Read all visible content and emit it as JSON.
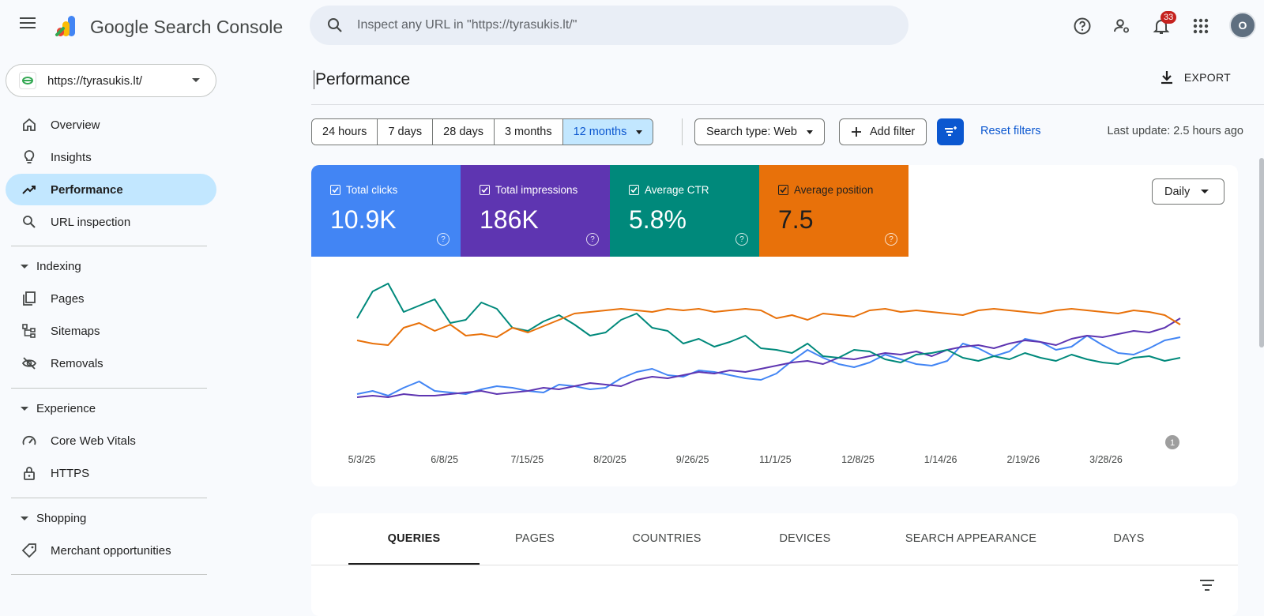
{
  "app": {
    "brand": "Google Search Console"
  },
  "search": {
    "placeholder": "Inspect any URL in \"https://tyrasukis.lt/\""
  },
  "header": {
    "notifications_count": "33",
    "avatar_initial": "O"
  },
  "property": {
    "label": "https://tyrasukis.lt/"
  },
  "nav": {
    "overview": "Overview",
    "insights": "Insights",
    "performance": "Performance",
    "url_inspection": "URL inspection",
    "indexing": "Indexing",
    "pages": "Pages",
    "sitemaps": "Sitemaps",
    "removals": "Removals",
    "experience": "Experience",
    "core_web_vitals": "Core Web Vitals",
    "https": "HTTPS",
    "shopping": "Shopping",
    "merchant": "Merchant opportunities"
  },
  "page": {
    "title": "Performance",
    "export": "EXPORT"
  },
  "filters": {
    "ranges": [
      "24 hours",
      "7 days",
      "28 days",
      "3 months",
      "12 months"
    ],
    "selected_range": "12 months",
    "search_type": "Search type: Web",
    "add_filter": "Add filter",
    "reset": "Reset filters",
    "last_update": "Last update: 2.5 hours ago"
  },
  "metrics": [
    {
      "label": "Total clicks",
      "value": "10.9K",
      "color": "#4285f4",
      "checked": true
    },
    {
      "label": "Total impressions",
      "value": "186K",
      "color": "#5e35b1",
      "checked": true
    },
    {
      "label": "Average CTR",
      "value": "5.8%",
      "color": "#00897b",
      "checked": true
    },
    {
      "label": "Average position",
      "value": "7.5",
      "color": "#e8710a",
      "checked": true
    }
  ],
  "granularity": "Daily",
  "chart_data": {
    "type": "line",
    "x_tick_labels": [
      "5/3/25",
      "6/8/25",
      "7/15/25",
      "8/20/25",
      "9/26/25",
      "11/1/25",
      "12/8/25",
      "1/14/26",
      "2/19/26",
      "3/28/26"
    ],
    "annotation": "1",
    "grid": false,
    "legend": "none",
    "series": [
      {
        "name": "Total clicks",
        "color": "#4285f4",
        "values": [
          10,
          12,
          9,
          14,
          18,
          12,
          11,
          10,
          13,
          15,
          14,
          12,
          11,
          16,
          15,
          13,
          14,
          20,
          24,
          26,
          22,
          21,
          25,
          24,
          22,
          20,
          19,
          23,
          31,
          38,
          33,
          29,
          27,
          30,
          35,
          32,
          29,
          28,
          31,
          42,
          39,
          34,
          37,
          45,
          43,
          38,
          40,
          47,
          41,
          36,
          35,
          39,
          44,
          46
        ]
      },
      {
        "name": "Total impressions",
        "color": "#5e35b1",
        "values": [
          8,
          9,
          8,
          10,
          9,
          9,
          10,
          11,
          12,
          10,
          11,
          12,
          14,
          13,
          15,
          17,
          16,
          15,
          19,
          21,
          20,
          22,
          24,
          23,
          25,
          24,
          26,
          28,
          30,
          31,
          29,
          33,
          32,
          34,
          36,
          35,
          37,
          34,
          38,
          40,
          41,
          39,
          42,
          44,
          43,
          41,
          45,
          47,
          46,
          48,
          50,
          49,
          52,
          58
        ]
      },
      {
        "name": "Average CTR",
        "color": "#00897b",
        "values": [
          58,
          75,
          80,
          62,
          66,
          70,
          55,
          57,
          68,
          64,
          52,
          50,
          56,
          60,
          54,
          47,
          49,
          57,
          61,
          52,
          50,
          42,
          45,
          40,
          43,
          47,
          39,
          38,
          36,
          42,
          34,
          33,
          38,
          37,
          32,
          30,
          35,
          36,
          38,
          33,
          31,
          34,
          32,
          36,
          33,
          31,
          35,
          32,
          30,
          29,
          33,
          34,
          31,
          33
        ]
      },
      {
        "name": "Average position",
        "color": "#e8710a",
        "values": [
          44,
          42,
          41,
          52,
          55,
          50,
          54,
          47,
          48,
          46,
          52,
          49,
          53,
          57,
          61,
          62,
          63,
          64,
          63,
          62,
          64,
          63,
          64,
          62,
          63,
          64,
          63,
          58,
          60,
          57,
          61,
          60,
          59,
          63,
          64,
          62,
          63,
          62,
          61,
          60,
          63,
          64,
          63,
          62,
          61,
          63,
          64,
          63,
          62,
          61,
          63,
          62,
          60,
          54
        ]
      }
    ]
  },
  "tabs": [
    "QUERIES",
    "PAGES",
    "COUNTRIES",
    "DEVICES",
    "SEARCH APPEARANCE",
    "DAYS"
  ],
  "icons": {
    "menu": "menu-icon",
    "search": "search-icon",
    "help": "help-icon",
    "admin": "manage-accounts-icon",
    "bell": "bell-icon",
    "apps": "apps-icon",
    "export": "download-icon",
    "filter": "filter-list-icon"
  }
}
